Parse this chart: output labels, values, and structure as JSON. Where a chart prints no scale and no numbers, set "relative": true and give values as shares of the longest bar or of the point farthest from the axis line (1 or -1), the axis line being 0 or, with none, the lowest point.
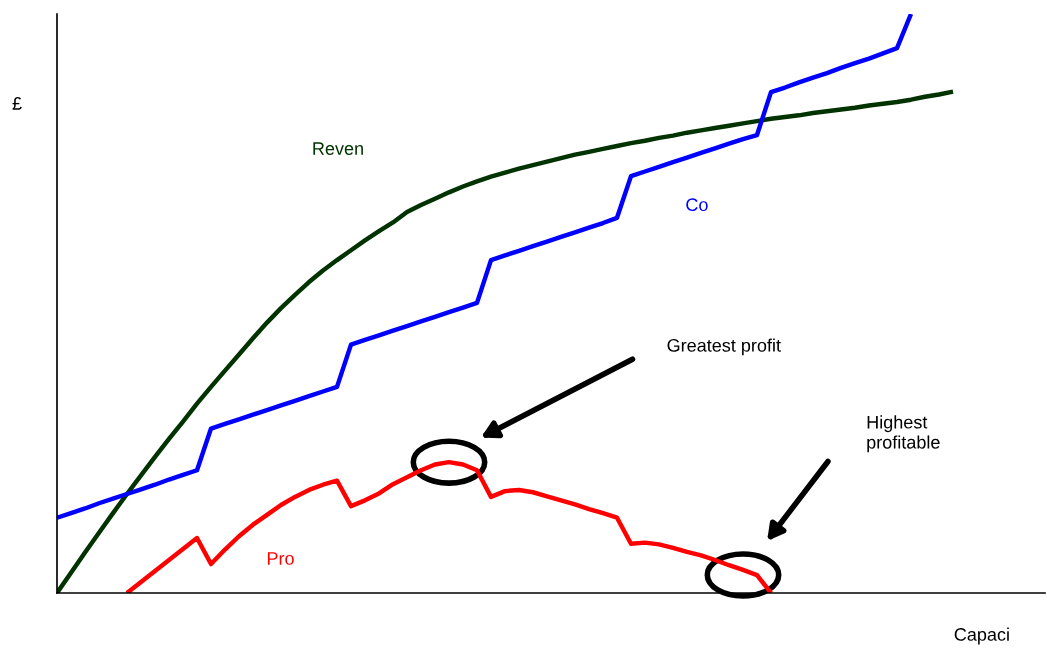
{
  "chart_data": {
    "type": "line",
    "relative": true,
    "xlabel": "Capaci",
    "ylabel": "£",
    "categories": [
      null,
      null,
      null,
      null,
      null,
      null,
      null,
      null,
      null,
      null,
      null,
      null,
      null,
      null,
      null,
      null,
      null,
      null,
      null,
      null,
      null,
      null,
      null,
      null,
      null,
      null,
      null,
      null,
      null,
      null,
      null,
      null,
      null,
      null,
      null,
      null,
      null,
      null,
      null,
      null,
      null,
      null,
      null,
      null,
      null,
      null,
      null,
      null,
      null,
      null,
      null,
      null,
      null,
      null,
      null,
      null,
      null,
      null,
      null,
      null,
      null,
      null,
      null,
      null,
      null
    ],
    "series": [
      {
        "name": "Reven",
        "color": "#003300",
        "values": [
          0,
          0.035,
          0.07,
          0.104,
          0.138,
          0.171,
          0.203,
          0.235,
          0.266,
          0.296,
          0.327,
          0.356,
          0.384,
          0.412,
          0.44,
          0.467,
          0.492,
          0.515,
          0.537,
          0.557,
          0.575,
          0.592,
          0.609,
          0.625,
          0.64,
          0.658,
          0.67,
          0.681,
          0.692,
          0.702,
          0.711,
          0.719,
          0.726,
          0.733,
          0.739,
          0.745,
          0.751,
          0.757,
          0.762,
          0.767,
          0.772,
          0.777,
          0.781,
          0.786,
          0.79,
          0.795,
          0.799,
          0.803,
          0.807,
          0.811,
          0.815,
          0.819,
          0.822,
          0.825,
          0.829,
          0.832,
          0.835,
          0.838,
          0.842,
          0.845,
          0.848,
          0.852,
          0.857,
          0.861,
          0.866
        ]
      },
      {
        "name": "Co",
        "color": "#0000ff",
        "values": [
          0.13,
          0.138,
          0.146,
          0.155,
          0.163,
          0.171,
          0.179,
          0.187,
          0.196,
          0.204,
          0.212,
          0.284,
          0.292,
          0.3,
          0.308,
          0.316,
          0.324,
          0.332,
          0.34,
          0.348,
          0.356,
          0.429,
          0.437,
          0.445,
          0.453,
          0.461,
          0.469,
          0.477,
          0.485,
          0.493,
          0.501,
          0.575,
          0.583,
          0.591,
          0.599,
          0.607,
          0.615,
          0.623,
          0.631,
          0.639,
          0.648,
          0.72,
          0.728,
          0.736,
          0.744,
          0.752,
          0.76,
          0.768,
          0.776,
          0.784,
          0.791,
          0.865,
          0.873,
          0.882,
          0.89,
          0.898,
          0.907,
          0.915,
          0.923,
          0.932,
          0.941,
          1.0,
          null,
          null,
          null
        ]
      },
      {
        "name": "Pro",
        "color": "#ff0000",
        "values": [
          null,
          null,
          null,
          null,
          null,
          0,
          0.019,
          0.038,
          0.057,
          0.076,
          0.095,
          0.05,
          0.075,
          0.098,
          0.118,
          0.135,
          0.152,
          0.166,
          0.178,
          0.187,
          0.194,
          0.15,
          0.16,
          0.172,
          0.188,
          0.2,
          0.212,
          0.222,
          0.226,
          0.222,
          0.212,
          0.166,
          0.176,
          0.178,
          0.174,
          0.167,
          0.16,
          0.153,
          0.145,
          0.138,
          0.13,
          0.085,
          0.087,
          0.084,
          0.078,
          0.071,
          0.065,
          0.057,
          0.048,
          0.04,
          0.031,
          0,
          null,
          null,
          null,
          null,
          null,
          null,
          null,
          null,
          null,
          null,
          null,
          null,
          null
        ]
      }
    ],
    "annotations": [
      "Greatest profit",
      "Highest\nprofitable"
    ]
  }
}
